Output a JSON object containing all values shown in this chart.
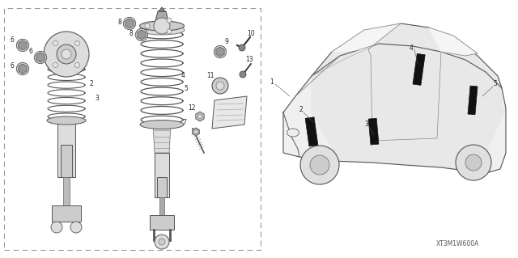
{
  "bg_color": "#ffffff",
  "diagram_code": "XT3M1W600A",
  "line_color": "#555555",
  "dark_color": "#333333",
  "light_fill": "#e8e8e8",
  "mid_fill": "#cccccc",
  "figsize": [
    6.4,
    3.19
  ],
  "dpi": 100,
  "label_fs": 5.5,
  "label_color": "#222222"
}
